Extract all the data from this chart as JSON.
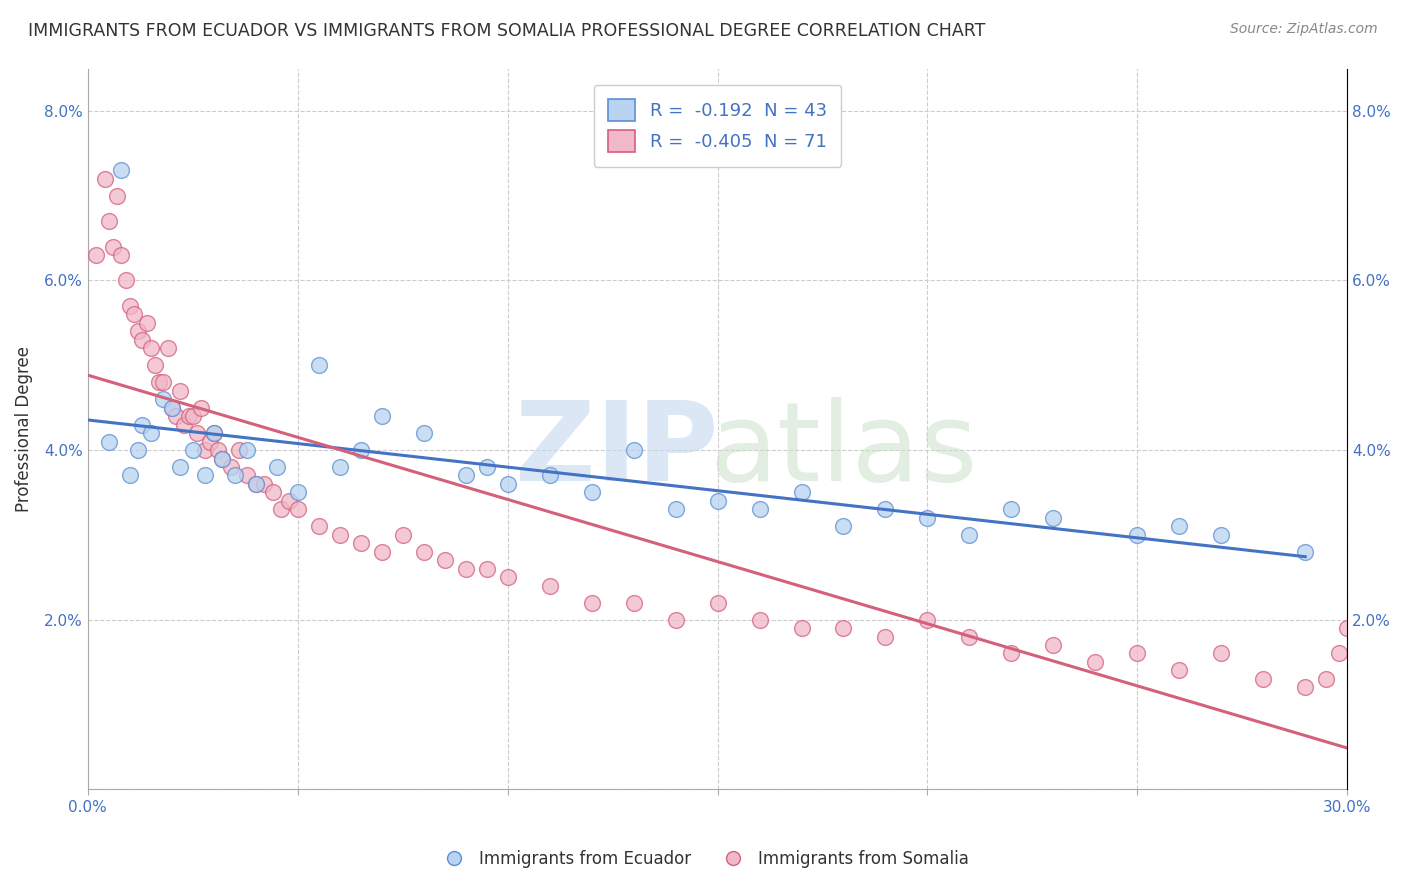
{
  "title": "IMMIGRANTS FROM ECUADOR VS IMMIGRANTS FROM SOMALIA PROFESSIONAL DEGREE CORRELATION CHART",
  "source": "Source: ZipAtlas.com",
  "ylabel": "Professional Degree",
  "xlim": [
    0.0,
    0.3
  ],
  "ylim": [
    0.0,
    0.085
  ],
  "xticks": [
    0.0,
    0.05,
    0.1,
    0.15,
    0.2,
    0.25,
    0.3
  ],
  "yticks": [
    0.0,
    0.02,
    0.04,
    0.06,
    0.08
  ],
  "ecuador_R": -0.192,
  "ecuador_N": 43,
  "somalia_R": -0.405,
  "somalia_N": 71,
  "ecuador_color": "#b8d4f0",
  "somalia_color": "#f0b8c8",
  "ecuador_edge_color": "#5b8fd4",
  "somalia_edge_color": "#d4607a",
  "ecuador_line_color": "#4472c4",
  "somalia_line_color": "#d4607a",
  "ecuador_x": [
    0.005,
    0.008,
    0.01,
    0.012,
    0.013,
    0.015,
    0.018,
    0.02,
    0.022,
    0.025,
    0.028,
    0.03,
    0.032,
    0.035,
    0.038,
    0.04,
    0.045,
    0.05,
    0.055,
    0.06,
    0.065,
    0.07,
    0.08,
    0.09,
    0.095,
    0.1,
    0.11,
    0.12,
    0.13,
    0.14,
    0.15,
    0.16,
    0.17,
    0.18,
    0.19,
    0.2,
    0.21,
    0.22,
    0.23,
    0.25,
    0.26,
    0.27,
    0.29
  ],
  "ecuador_y": [
    0.041,
    0.073,
    0.037,
    0.04,
    0.043,
    0.042,
    0.046,
    0.045,
    0.038,
    0.04,
    0.037,
    0.042,
    0.039,
    0.037,
    0.04,
    0.036,
    0.038,
    0.035,
    0.05,
    0.038,
    0.04,
    0.044,
    0.042,
    0.037,
    0.038,
    0.036,
    0.037,
    0.035,
    0.04,
    0.033,
    0.034,
    0.033,
    0.035,
    0.031,
    0.033,
    0.032,
    0.03,
    0.033,
    0.032,
    0.03,
    0.031,
    0.03,
    0.028
  ],
  "somalia_x": [
    0.002,
    0.004,
    0.005,
    0.006,
    0.007,
    0.008,
    0.009,
    0.01,
    0.011,
    0.012,
    0.013,
    0.014,
    0.015,
    0.016,
    0.017,
    0.018,
    0.019,
    0.02,
    0.021,
    0.022,
    0.023,
    0.024,
    0.025,
    0.026,
    0.027,
    0.028,
    0.029,
    0.03,
    0.031,
    0.032,
    0.034,
    0.036,
    0.038,
    0.04,
    0.042,
    0.044,
    0.046,
    0.048,
    0.05,
    0.055,
    0.06,
    0.065,
    0.07,
    0.075,
    0.08,
    0.085,
    0.09,
    0.095,
    0.1,
    0.11,
    0.12,
    0.13,
    0.14,
    0.15,
    0.16,
    0.17,
    0.18,
    0.19,
    0.2,
    0.21,
    0.22,
    0.23,
    0.24,
    0.25,
    0.26,
    0.27,
    0.28,
    0.29,
    0.295,
    0.298,
    0.3
  ],
  "somalia_y": [
    0.063,
    0.072,
    0.067,
    0.064,
    0.07,
    0.063,
    0.06,
    0.057,
    0.056,
    0.054,
    0.053,
    0.055,
    0.052,
    0.05,
    0.048,
    0.048,
    0.052,
    0.045,
    0.044,
    0.047,
    0.043,
    0.044,
    0.044,
    0.042,
    0.045,
    0.04,
    0.041,
    0.042,
    0.04,
    0.039,
    0.038,
    0.04,
    0.037,
    0.036,
    0.036,
    0.035,
    0.033,
    0.034,
    0.033,
    0.031,
    0.03,
    0.029,
    0.028,
    0.03,
    0.028,
    0.027,
    0.026,
    0.026,
    0.025,
    0.024,
    0.022,
    0.022,
    0.02,
    0.022,
    0.02,
    0.019,
    0.019,
    0.018,
    0.02,
    0.018,
    0.016,
    0.017,
    0.015,
    0.016,
    0.014,
    0.016,
    0.013,
    0.012,
    0.013,
    0.016,
    0.019
  ]
}
